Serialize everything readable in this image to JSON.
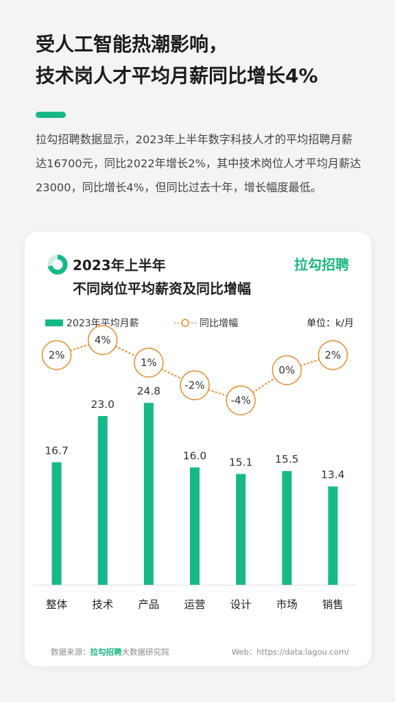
{
  "headline": {
    "line1": "受人工智能热潮影响，",
    "line2": "技术岗人才平均月薪同比增长4%"
  },
  "intro": "拉勾招聘数据显示，2023年上半年数字科技人才的平均招聘月薪达16700元，同比2022年增长2%，其中技术岗位人才平均月薪达23000，同比增长4%，但同比过去十年，增长幅度最低。",
  "card": {
    "title_line1": "2023年上半年",
    "title_line2": "不同岗位平均薪资及同比增幅",
    "brand": "拉勾招聘"
  },
  "legend": {
    "bar_label": "2023年平均月薪",
    "line_label": "同比增幅",
    "unit": "单位：k/月"
  },
  "colors": {
    "accent_green": "#17b888",
    "orange": "#e58b2c",
    "brand_green": "#1ab77d"
  },
  "chart_data": {
    "type": "bar",
    "categories": [
      "整体",
      "技术",
      "产品",
      "运营",
      "设计",
      "市场",
      "销售"
    ],
    "series": [
      {
        "name": "2023年平均月薪",
        "type": "bar",
        "values": [
          16.7,
          23.0,
          24.8,
          16.0,
          15.1,
          15.5,
          13.4
        ],
        "labels": [
          "16.7",
          "23.0",
          "24.8",
          "16.0",
          "15.1",
          "15.5",
          "13.4"
        ]
      },
      {
        "name": "同比增幅",
        "type": "line",
        "values": [
          2,
          4,
          1,
          -2,
          -4,
          0,
          2
        ],
        "labels": [
          "2%",
          "4%",
          "1%",
          "-2%",
          "-4%",
          "0%",
          "2%"
        ]
      }
    ],
    "ylabel": "单位：k/月",
    "ylim": [
      0,
      30
    ],
    "grid": false,
    "legend_position": "top"
  },
  "footer": {
    "source_prefix": "数据来源：",
    "source_brand": "拉勾招聘",
    "source_suffix": "大数据研究院",
    "web": "Web：https://data.lagou.com/"
  }
}
